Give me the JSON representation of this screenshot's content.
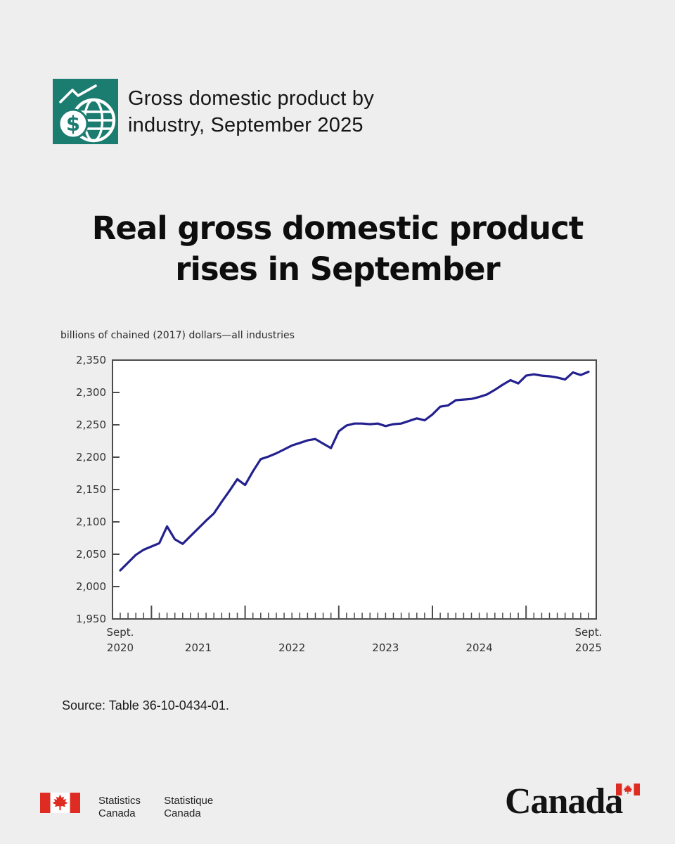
{
  "colors": {
    "page_background": "#efeeee",
    "icon_teal": "#1b7c70",
    "line_blue": "#23208f",
    "flag_red": "#df2c22",
    "chart_border": "#4c4c4c"
  },
  "header": {
    "title_line1": "Gross domestic product by",
    "title_line2": "industry, September 2025",
    "icon": "gdp-trend-globe-dollar-icon"
  },
  "headline": {
    "line1": "Real gross domestic product",
    "line2": "rises in September"
  },
  "chart_data": {
    "type": "line",
    "title": "billions of chained (2017) dollars—all industries",
    "unit": "billions of chained (2017) dollars",
    "series_label": "all industries",
    "frequency": "monthly",
    "start": "Sept. 2020",
    "end": "Sept. 2025",
    "line_color": "#23208f",
    "grid": false,
    "legend": "none",
    "y_axis": {
      "min": 1950,
      "max": 2350,
      "step": 50,
      "ticks": [
        2350,
        2300,
        2250,
        2200,
        2150,
        2100,
        2050,
        2000,
        1950
      ]
    },
    "x_axis": {
      "start_label": [
        "Sept.",
        "2020"
      ],
      "end_label": [
        "Sept.",
        "2025"
      ],
      "year_labels": [
        "2021",
        "2022",
        "2023",
        "2024"
      ],
      "january_tick_month_indices": [
        4,
        16,
        28,
        40,
        52
      ],
      "minor_tick": "monthly"
    },
    "values": [
      2025,
      2037,
      2049,
      2057,
      2062,
      2067,
      2093,
      2073,
      2066,
      2078,
      2090,
      2102,
      2113,
      2131,
      2148,
      2166,
      2157,
      2178,
      2197,
      2201,
      2206,
      2212,
      2218,
      2222,
      2226,
      2228,
      2221,
      2214,
      2240,
      2249,
      2252,
      2252,
      2251,
      2252,
      2248,
      2251,
      2252,
      2256,
      2260,
      2257,
      2266,
      2278,
      2280,
      2288,
      2289,
      2290,
      2293,
      2297,
      2304,
      2312,
      2319,
      2314,
      2326,
      2328,
      2326,
      2325,
      2323,
      2320,
      2331,
      2327,
      2332
    ]
  },
  "source": {
    "text": "Source: Table 36-10-0434-01."
  },
  "footer": {
    "statcan_signature": {
      "english_line1": "Statistics",
      "english_line2": "Canada",
      "french_line1": "Statistique",
      "french_line2": "Canada"
    },
    "canada_wordmark": "Canada"
  }
}
